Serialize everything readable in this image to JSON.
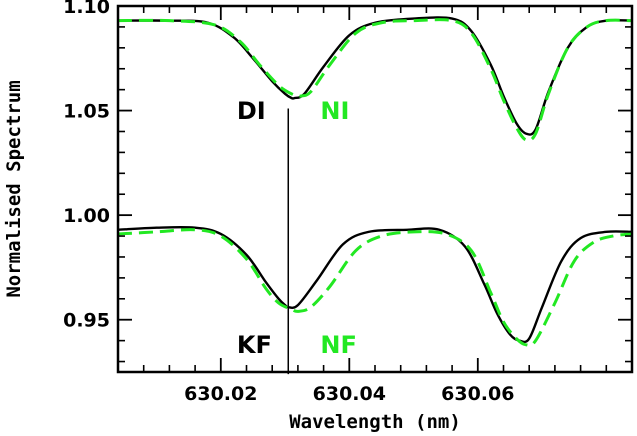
{
  "chart_data": {
    "type": "line",
    "xlabel": "Wavelength (nm)",
    "ylabel": "Normalised Spectrum",
    "xlim": [
      630.004,
      630.084
    ],
    "ylim": [
      0.925,
      1.1
    ],
    "x_ticks": [
      {
        "value": 630.02,
        "label": "630.02"
      },
      {
        "value": 630.04,
        "label": "630.04"
      },
      {
        "value": 630.06,
        "label": "630.06"
      }
    ],
    "y_ticks": [
      {
        "value": 0.95,
        "label": "0.95"
      },
      {
        "value": 1.0,
        "label": "1.00"
      },
      {
        "value": 1.05,
        "label": "1.05"
      },
      {
        "value": 1.1,
        "label": "1.10"
      }
    ],
    "grid": false,
    "legend": "none",
    "vertical_line_x": 630.0305,
    "vertical_line_y": [
      0.924,
      1.051
    ],
    "colors": {
      "black": "#000000",
      "green": "#22e822"
    },
    "series": [
      {
        "style": "solid",
        "color": "#000000",
        "x": [
          630.004,
          630.012,
          630.018,
          630.022,
          630.025,
          630.028,
          630.03,
          630.031,
          630.0315,
          630.033,
          630.036,
          630.04,
          630.044,
          630.05,
          630.056,
          630.059,
          630.062,
          630.064,
          630.066,
          630.0675,
          630.069,
          630.071,
          630.074,
          630.077,
          630.08,
          630.084
        ],
        "y": [
          1.093,
          1.093,
          1.092,
          1.085,
          1.075,
          1.064,
          1.058,
          1.056,
          1.056,
          1.058,
          1.071,
          1.086,
          1.092,
          1.094,
          1.094,
          1.088,
          1.072,
          1.057,
          1.044,
          1.039,
          1.041,
          1.059,
          1.08,
          1.09,
          1.093,
          1.093
        ]
      },
      {
        "style": "dashed",
        "color": "#22e822",
        "x": [
          630.004,
          630.012,
          630.019,
          630.023,
          630.026,
          630.029,
          630.031,
          630.032,
          630.0325,
          630.034,
          630.037,
          630.041,
          630.045,
          630.05,
          630.056,
          630.059,
          630.062,
          630.064,
          630.066,
          630.0675,
          630.069,
          630.071,
          630.074,
          630.077,
          630.08,
          630.084
        ],
        "y": [
          1.093,
          1.093,
          1.091,
          1.083,
          1.072,
          1.062,
          1.058,
          1.057,
          1.057,
          1.059,
          1.072,
          1.087,
          1.092,
          1.093,
          1.093,
          1.087,
          1.07,
          1.055,
          1.042,
          1.036,
          1.039,
          1.058,
          1.08,
          1.09,
          1.093,
          1.093
        ]
      },
      {
        "style": "solid",
        "color": "#000000",
        "x": [
          630.004,
          630.01,
          630.016,
          630.02,
          630.024,
          630.027,
          630.029,
          630.03,
          630.0305,
          630.032,
          630.035,
          630.039,
          630.043,
          630.049,
          630.054,
          630.058,
          630.061,
          630.063,
          630.065,
          630.0665,
          630.068,
          630.07,
          630.073,
          630.076,
          630.08,
          630.084
        ],
        "y": [
          0.993,
          0.994,
          0.994,
          0.991,
          0.981,
          0.968,
          0.96,
          0.957,
          0.956,
          0.957,
          0.969,
          0.986,
          0.992,
          0.993,
          0.993,
          0.985,
          0.967,
          0.953,
          0.943,
          0.94,
          0.941,
          0.956,
          0.978,
          0.989,
          0.992,
          0.992
        ]
      },
      {
        "style": "dashed",
        "color": "#22e822",
        "x": [
          630.004,
          630.01,
          630.016,
          630.02,
          630.024,
          630.027,
          630.029,
          630.031,
          630.032,
          630.034,
          630.037,
          630.041,
          630.045,
          630.05,
          630.055,
          630.059,
          630.062,
          630.064,
          630.066,
          630.0675,
          630.069,
          630.072,
          630.075,
          630.078,
          630.081,
          630.084
        ],
        "y": [
          0.991,
          0.992,
          0.993,
          0.99,
          0.979,
          0.965,
          0.958,
          0.955,
          0.954,
          0.956,
          0.966,
          0.983,
          0.99,
          0.992,
          0.991,
          0.983,
          0.963,
          0.949,
          0.941,
          0.938,
          0.94,
          0.958,
          0.978,
          0.987,
          0.99,
          0.991
        ]
      }
    ],
    "annotations": [
      {
        "text": "DI",
        "color": "#000000",
        "x": 630.0225,
        "y": 1.046
      },
      {
        "text": "NI",
        "color": "#22e822",
        "x": 630.0355,
        "y": 1.046
      },
      {
        "text": "KF",
        "color": "#000000",
        "x": 630.0225,
        "y": 0.934
      },
      {
        "text": "NF",
        "color": "#22e822",
        "x": 630.0355,
        "y": 0.934
      }
    ]
  }
}
